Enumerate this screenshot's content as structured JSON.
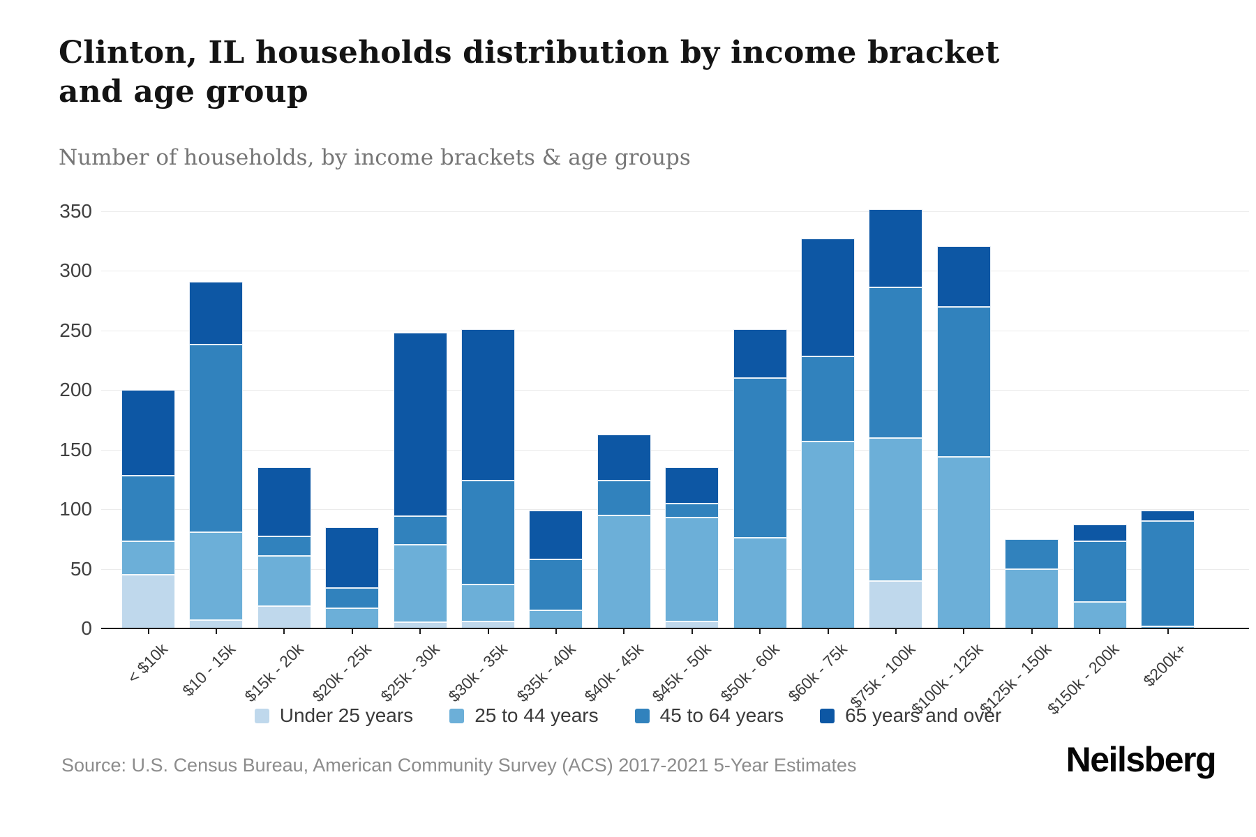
{
  "page": {
    "title": "Clinton, IL households distribution by income bracket and age group",
    "subtitle": "Number of households, by income brackets & age groups"
  },
  "source_line": "Source: U.S. Census Bureau, American Community Survey (ACS) 2017-2021 5-Year Estimates",
  "logo_text": "Neilsberg",
  "chart_data": {
    "type": "bar",
    "stacked": true,
    "title": "Clinton, IL households distribution by income bracket and age group",
    "subtitle": "Number of households, by income brackets & age groups",
    "categories": [
      "< $10k",
      "$10 - 15k",
      "$15k - 20k",
      "$20k - 25k",
      "$25k - 30k",
      "$30k - 35k",
      "$35k - 40k",
      "$40k - 45k",
      "$45k - 50k",
      "$50k - 60k",
      "$60k - 75k",
      "$75k - 100k",
      "$100k - 125k",
      "$125k - 150k",
      "$150k - 200k",
      "$200k+"
    ],
    "series": [
      {
        "name": "Under 25 years",
        "color": "#bfd8ec",
        "values": [
          45,
          7,
          19,
          0,
          5,
          6,
          0,
          0,
          6,
          0,
          0,
          40,
          0,
          0,
          0,
          0
        ]
      },
      {
        "name": "25 to 44 years",
        "color": "#6cafd8",
        "values": [
          28,
          74,
          42,
          17,
          65,
          31,
          15,
          95,
          87,
          76,
          157,
          120,
          144,
          50,
          22,
          2
        ]
      },
      {
        "name": "45 to 64 years",
        "color": "#3182bd",
        "values": [
          55,
          157,
          16,
          17,
          24,
          87,
          43,
          29,
          12,
          134,
          71,
          126,
          126,
          25,
          51,
          88
        ]
      },
      {
        "name": "65 years and over",
        "color": "#0d57a4",
        "values": [
          72,
          53,
          58,
          51,
          154,
          127,
          41,
          39,
          30,
          41,
          99,
          66,
          51,
          0,
          14,
          9
        ]
      }
    ],
    "stack_totals": [
      200,
      291,
      135,
      85,
      248,
      251,
      99,
      163,
      135,
      251,
      327,
      352,
      321,
      75,
      87,
      99
    ],
    "ylim": [
      0,
      350
    ],
    "ytick_step": 50,
    "yticks": [
      0,
      50,
      100,
      150,
      200,
      250,
      300,
      350
    ],
    "grid": "horizontal",
    "legend_position": "bottom"
  }
}
